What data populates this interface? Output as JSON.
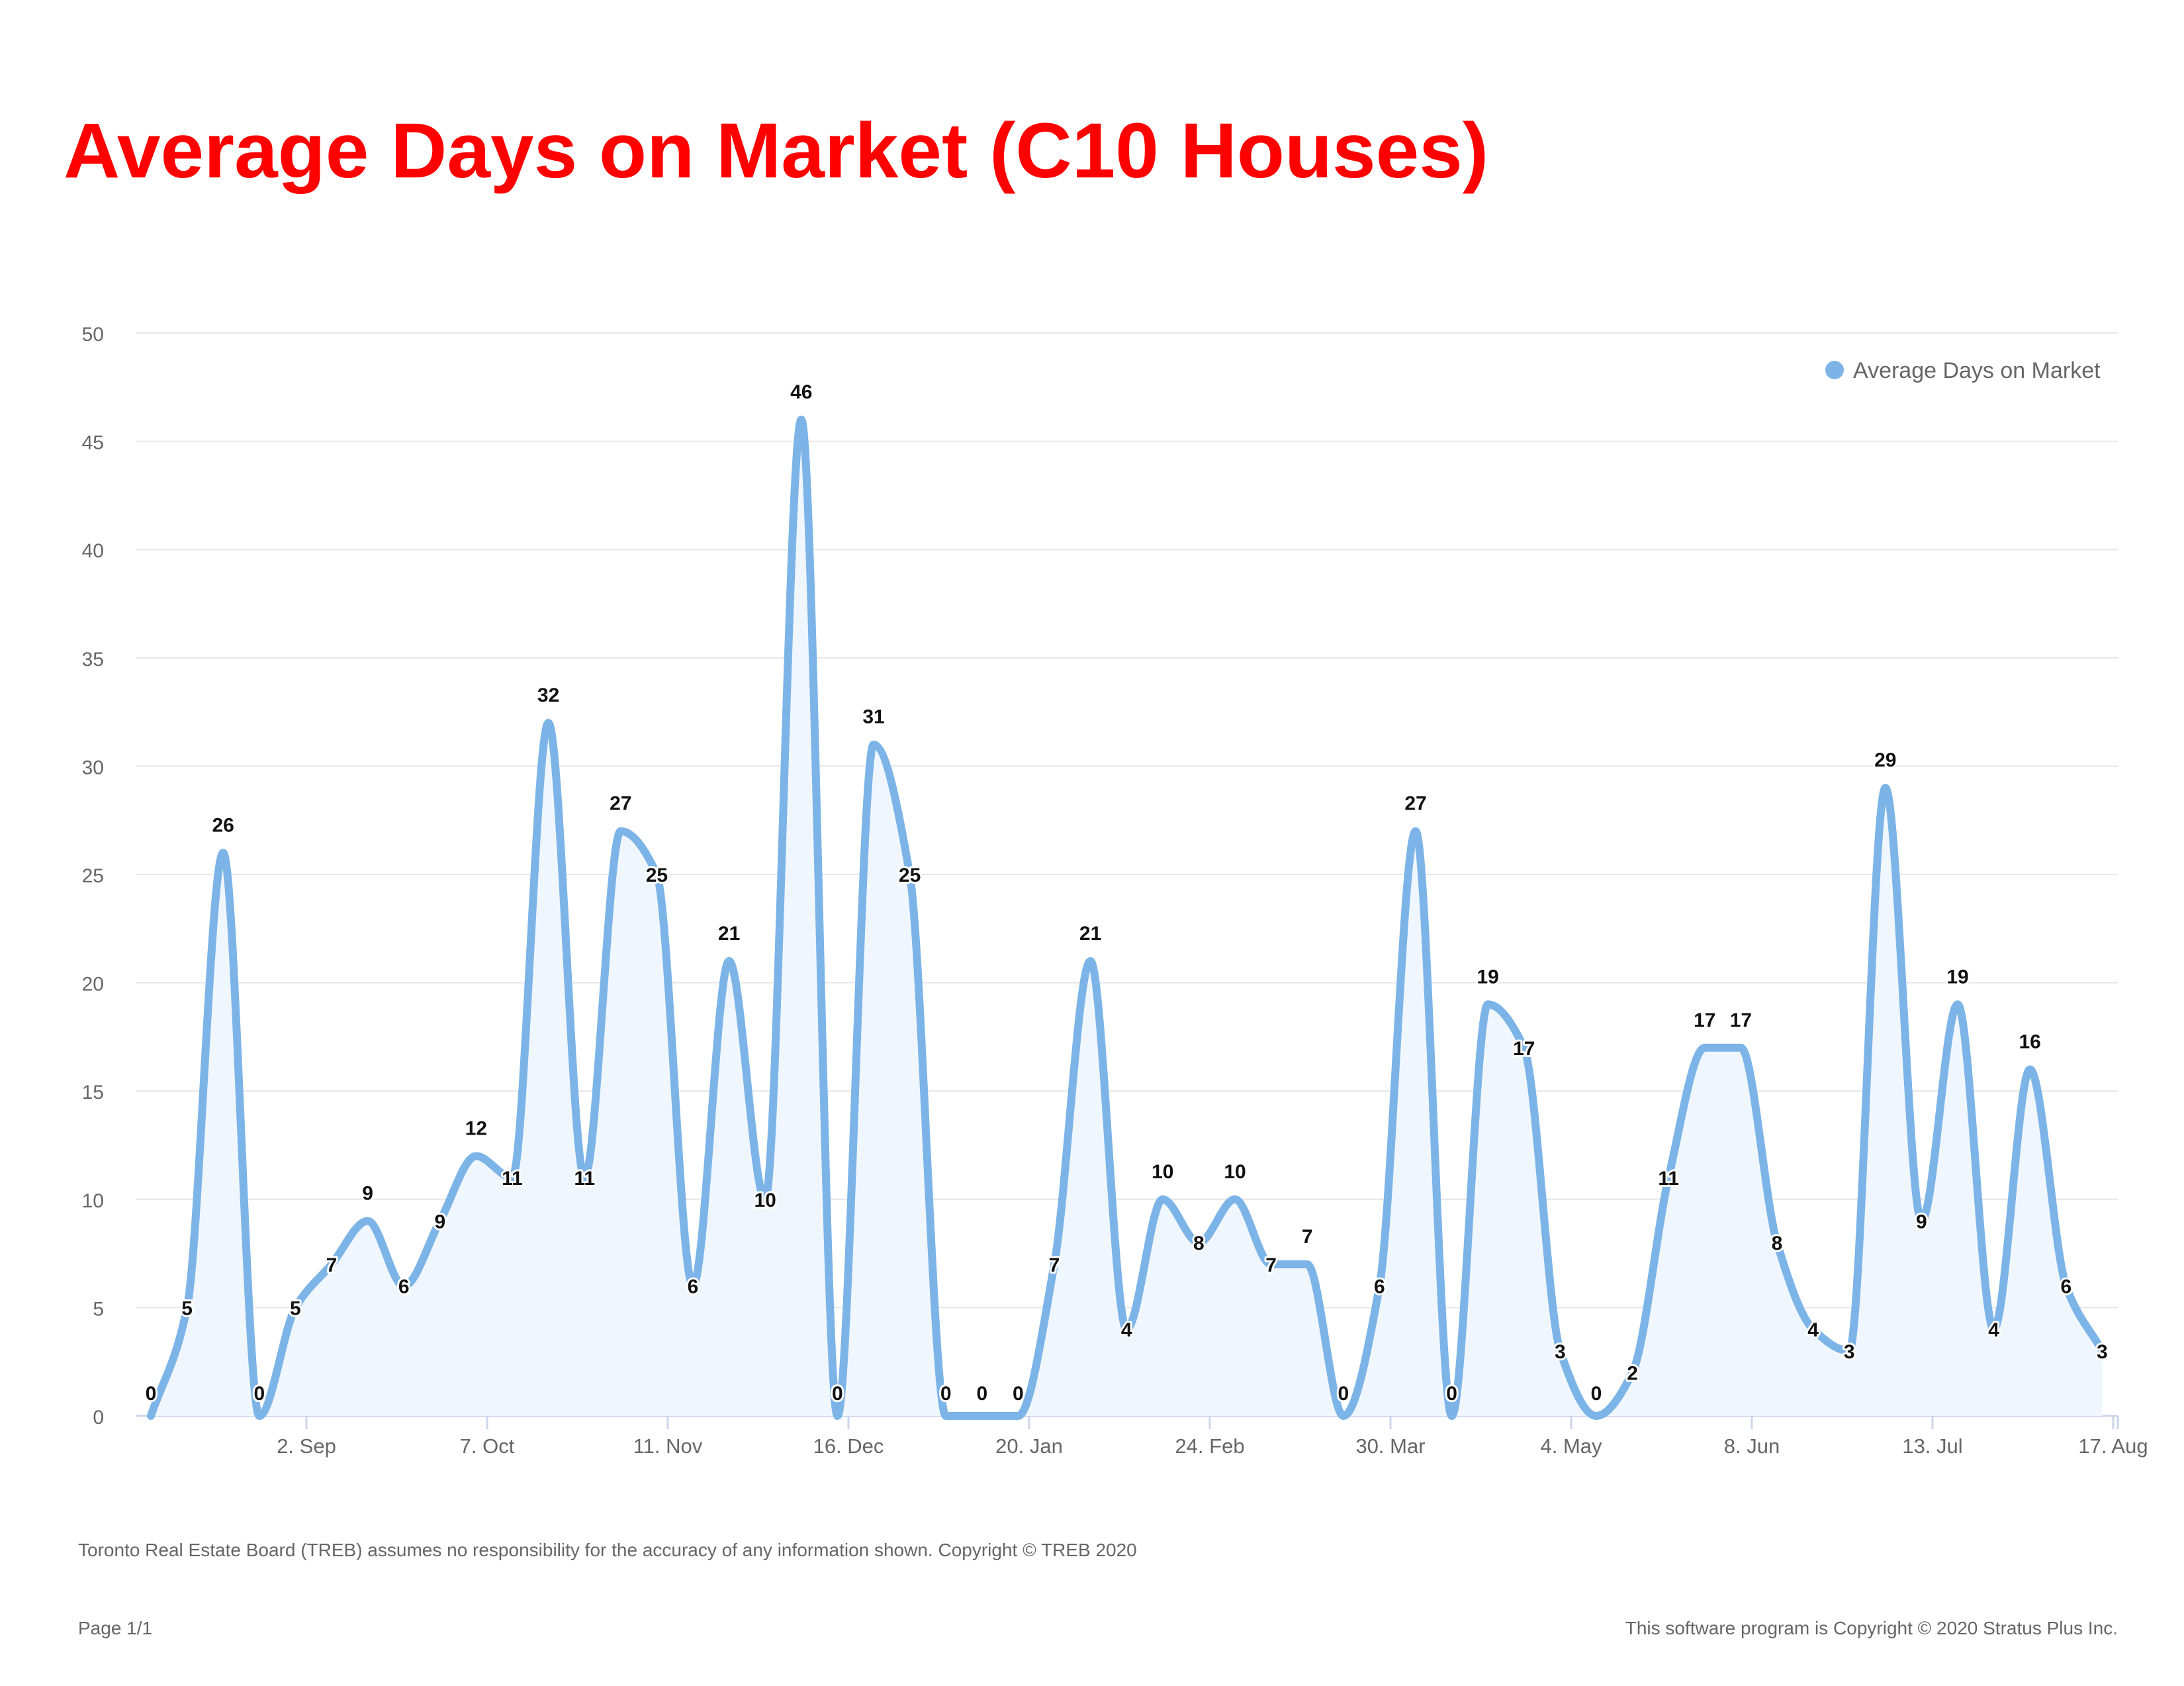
{
  "page": {
    "disclaimer": "Toronto Real Estate Board (TREB) assumes no responsibility for the accuracy of any information shown. Copyright © TREB 2020",
    "page_number": "Page 1/1",
    "copyright": "This software program is Copyright © 2020 Stratus Plus Inc."
  },
  "colors": {
    "title": "#ff0000",
    "series_line": "#7cb4e8",
    "series_fill": "#f0f6fd",
    "grid": "#e6e6e6",
    "axis_text": "#666666",
    "data_label": "#111111"
  },
  "chart_data": {
    "type": "area",
    "title": "Average Days on Market (C10 Houses)",
    "xlabel": "",
    "ylabel": "",
    "ylim": [
      0,
      50
    ],
    "yticks": [
      0,
      5,
      10,
      15,
      20,
      25,
      30,
      35,
      40,
      45,
      50
    ],
    "grid": true,
    "legend": "top-right",
    "xtick_labels": [
      "2. Sep",
      "7. Oct",
      "11. Nov",
      "16. Dec",
      "20. Jan",
      "24. Feb",
      "30. Mar",
      "4. May",
      "8. Jun",
      "13. Jul",
      "17. Aug"
    ],
    "series": [
      {
        "name": "Average Days on Market",
        "values": [
          0,
          5,
          26,
          0,
          5,
          7,
          9,
          6,
          9,
          12,
          11,
          32,
          11,
          27,
          25,
          6,
          21,
          10,
          46,
          0,
          31,
          25,
          0,
          0,
          0,
          7,
          21,
          4,
          10,
          8,
          10,
          7,
          7,
          0,
          6,
          27,
          0,
          19,
          17,
          3,
          0,
          2,
          11,
          17,
          17,
          8,
          4,
          3,
          29,
          9,
          19,
          4,
          16,
          6,
          3
        ]
      }
    ]
  }
}
